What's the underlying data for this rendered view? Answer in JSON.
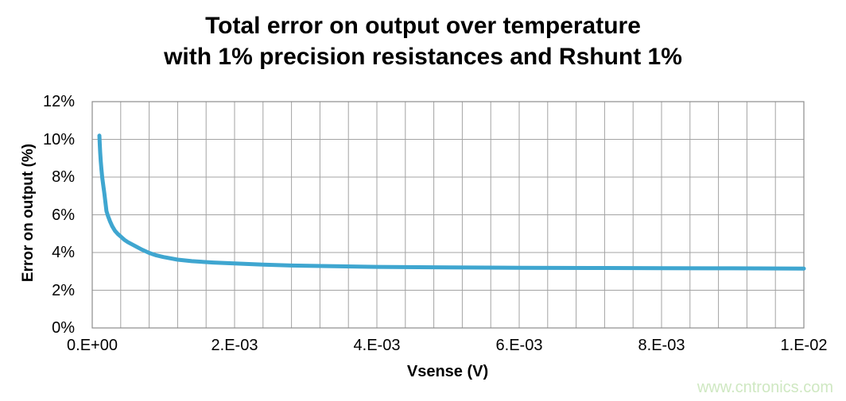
{
  "title": {
    "line1": "Total error on output over temperature",
    "line2": "with 1% precision resistances and Rshunt 1%"
  },
  "watermark": "www.cntronics.com",
  "colors": {
    "curve": "#3fa6d0",
    "grid": "#a3a3a3",
    "plot_border": "#8c8c8c",
    "text": "#000000",
    "watermark": "#cfe8c2",
    "background": "#ffffff"
  },
  "chart_data": {
    "type": "line",
    "title": "Total error on output over temperature with 1% precision resistances and Rshunt 1%",
    "xlabel": "Vsense (V)",
    "ylabel": "Error on output (%)",
    "xlim": [
      0,
      0.01
    ],
    "ylim": [
      0,
      12
    ],
    "grid": true,
    "legend": false,
    "x_gridline_step": 0.0004,
    "x_ticks": [
      {
        "value": 0,
        "label": "0.E+00"
      },
      {
        "value": 0.002,
        "label": "2.E-03"
      },
      {
        "value": 0.004,
        "label": "4.E-03"
      },
      {
        "value": 0.006,
        "label": "6.E-03"
      },
      {
        "value": 0.008,
        "label": "8.E-03"
      },
      {
        "value": 0.01,
        "label": "1.E-02"
      }
    ],
    "y_ticks": [
      {
        "value": 0,
        "label": "0%"
      },
      {
        "value": 2,
        "label": "2%"
      },
      {
        "value": 4,
        "label": "4%"
      },
      {
        "value": 6,
        "label": "6%"
      },
      {
        "value": 8,
        "label": "8%"
      },
      {
        "value": 10,
        "label": "10%"
      },
      {
        "value": 12,
        "label": "12%"
      }
    ],
    "series": [
      {
        "name": "Total error on output",
        "points": [
          [
            0.0001,
            10.2
          ],
          [
            0.000105,
            9.8
          ],
          [
            0.000112,
            9.3
          ],
          [
            0.00012,
            8.85
          ],
          [
            0.00013,
            8.4
          ],
          [
            0.00014,
            8.0
          ],
          [
            0.000155,
            7.55
          ],
          [
            0.00017,
            7.15
          ],
          [
            0.0002,
            6.2
          ],
          [
            0.00022,
            5.95
          ],
          [
            0.00025,
            5.65
          ],
          [
            0.00028,
            5.4
          ],
          [
            0.00032,
            5.15
          ],
          [
            0.00036,
            4.98
          ],
          [
            0.0004,
            4.85
          ],
          [
            0.00045,
            4.68
          ],
          [
            0.0005,
            4.55
          ],
          [
            0.0006,
            4.35
          ],
          [
            0.0007,
            4.15
          ],
          [
            0.0008,
            3.98
          ],
          [
            0.0009,
            3.85
          ],
          [
            0.001,
            3.76
          ],
          [
            0.0012,
            3.62
          ],
          [
            0.0014,
            3.54
          ],
          [
            0.0017,
            3.47
          ],
          [
            0.002,
            3.42
          ],
          [
            0.0024,
            3.36
          ],
          [
            0.0028,
            3.31
          ],
          [
            0.0034,
            3.27
          ],
          [
            0.004,
            3.24
          ],
          [
            0.005,
            3.21
          ],
          [
            0.006,
            3.19
          ],
          [
            0.007,
            3.18
          ],
          [
            0.008,
            3.17
          ],
          [
            0.009,
            3.16
          ],
          [
            0.01,
            3.15
          ]
        ]
      }
    ]
  }
}
